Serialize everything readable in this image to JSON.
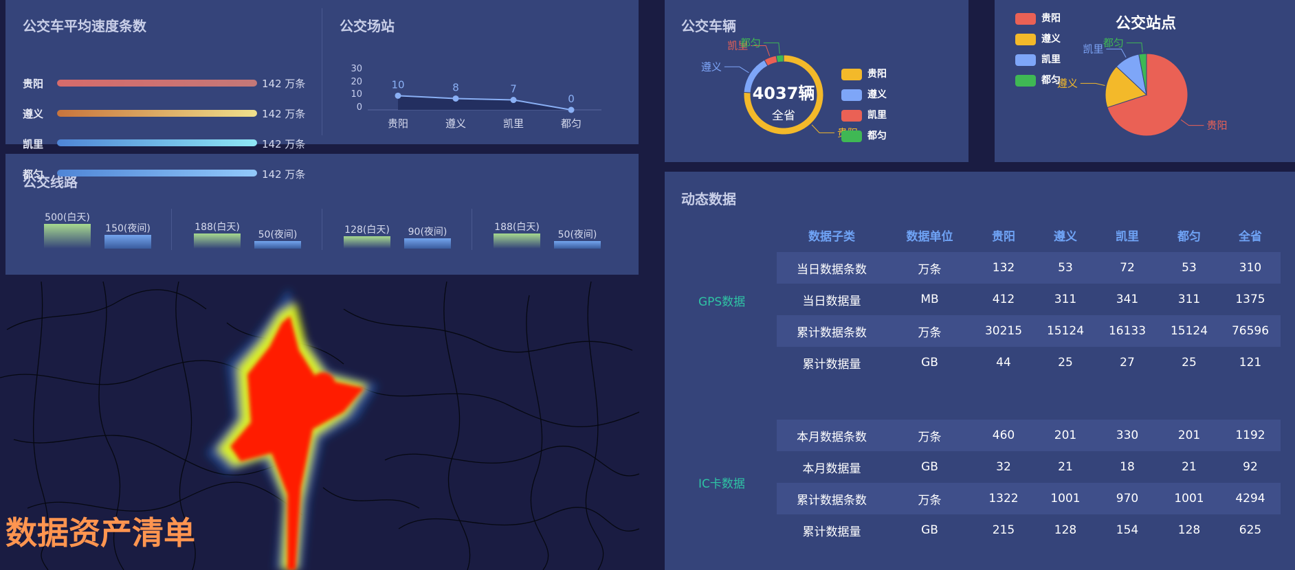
{
  "speed_panel": {
    "title": "公交车平均速度条数",
    "rows": [
      {
        "city": "贵阳",
        "value": "142 万条"
      },
      {
        "city": "遵义",
        "value": "142 万条"
      },
      {
        "city": "凯里",
        "value": "142 万条"
      },
      {
        "city": "都匀",
        "value": "142 万条"
      }
    ]
  },
  "station_panel": {
    "title": "公交场站",
    "chart_data": {
      "type": "line",
      "categories": [
        "贵阳",
        "遵义",
        "凯里",
        "都匀"
      ],
      "values": [
        10,
        8,
        7,
        0
      ],
      "y_ticks": [
        "30",
        "20",
        "10",
        "0"
      ],
      "ylim": [
        0,
        30
      ]
    }
  },
  "route_panel": {
    "title": "公交线路",
    "chart_data": {
      "type": "bar",
      "groups": [
        {
          "day": 500,
          "night": 150,
          "day_label": "500(白天)",
          "night_label": "150(夜间)"
        },
        {
          "day": 188,
          "night": 50,
          "day_label": "188(白天)",
          "night_label": "50(夜间)"
        },
        {
          "day": 128,
          "night": 90,
          "day_label": "128(白天)",
          "night_label": "90(夜间)"
        },
        {
          "day": 188,
          "night": 50,
          "day_label": "188(白天)",
          "night_label": "50(夜间)"
        }
      ]
    }
  },
  "vehicle_panel": {
    "title": "公交车辆",
    "center_value": "4037辆",
    "center_sub": "全省",
    "chart_data": {
      "type": "pie",
      "variant": "donut",
      "categories": [
        "贵阳",
        "遵义",
        "凯里",
        "都匀"
      ],
      "values": [
        76,
        16,
        5,
        3
      ],
      "colors": [
        "#f3b92a",
        "#7ea6f8",
        "#ea6155",
        "#3fb854"
      ]
    },
    "legend": [
      "贵阳",
      "遵义",
      "凯里",
      "都匀"
    ],
    "slice_labels": [
      "贵阳",
      "遵义",
      "凯里",
      "都匀"
    ]
  },
  "stop_panel": {
    "title": "公交站点",
    "chart_data": {
      "type": "pie",
      "categories": [
        "贵阳",
        "遵义",
        "凯里",
        "都匀"
      ],
      "values": [
        70,
        17,
        10,
        3
      ],
      "colors": [
        "#ea6155",
        "#f3b92a",
        "#7ea6f8",
        "#3fb854"
      ]
    },
    "legend": [
      "贵阳",
      "遵义",
      "凯里",
      "都匀"
    ],
    "slice_labels": [
      "贵阳",
      "遵义",
      "凯里",
      "都匀"
    ]
  },
  "dynamic_panel": {
    "title": "动态数据",
    "headers": [
      "数据子类",
      "数据单位",
      "贵阳",
      "遵义",
      "凯里",
      "都匀",
      "全省"
    ],
    "gps_label": "GPS数据",
    "ic_label": "IC卡数据",
    "gps_rows": [
      [
        "当日数据条数",
        "万条",
        "132",
        "53",
        "72",
        "53",
        "310"
      ],
      [
        "当日数据量",
        "MB",
        "412",
        "311",
        "341",
        "311",
        "1375"
      ],
      [
        "累计数据条数",
        "万条",
        "30215",
        "15124",
        "16133",
        "15124",
        "76596"
      ],
      [
        "累计数据量",
        "GB",
        "44",
        "25",
        "27",
        "25",
        "121"
      ]
    ],
    "ic_rows": [
      [
        "本月数据条数",
        "万条",
        "460",
        "201",
        "330",
        "201",
        "1192"
      ],
      [
        "本月数据量",
        "GB",
        "32",
        "21",
        "18",
        "21",
        "92"
      ],
      [
        "累计数据条数",
        "万条",
        "1322",
        "1001",
        "970",
        "1001",
        "4294"
      ],
      [
        "累计数据量",
        "GB",
        "215",
        "128",
        "154",
        "128",
        "625"
      ]
    ]
  },
  "map": {
    "title": "数据资产清单"
  },
  "colors": {
    "panel": "#35447a",
    "background": "#1a1c42",
    "header_blue": "#6fa3f5",
    "category_green": "#2fc3a4",
    "heat_red": "#ff1a00"
  }
}
